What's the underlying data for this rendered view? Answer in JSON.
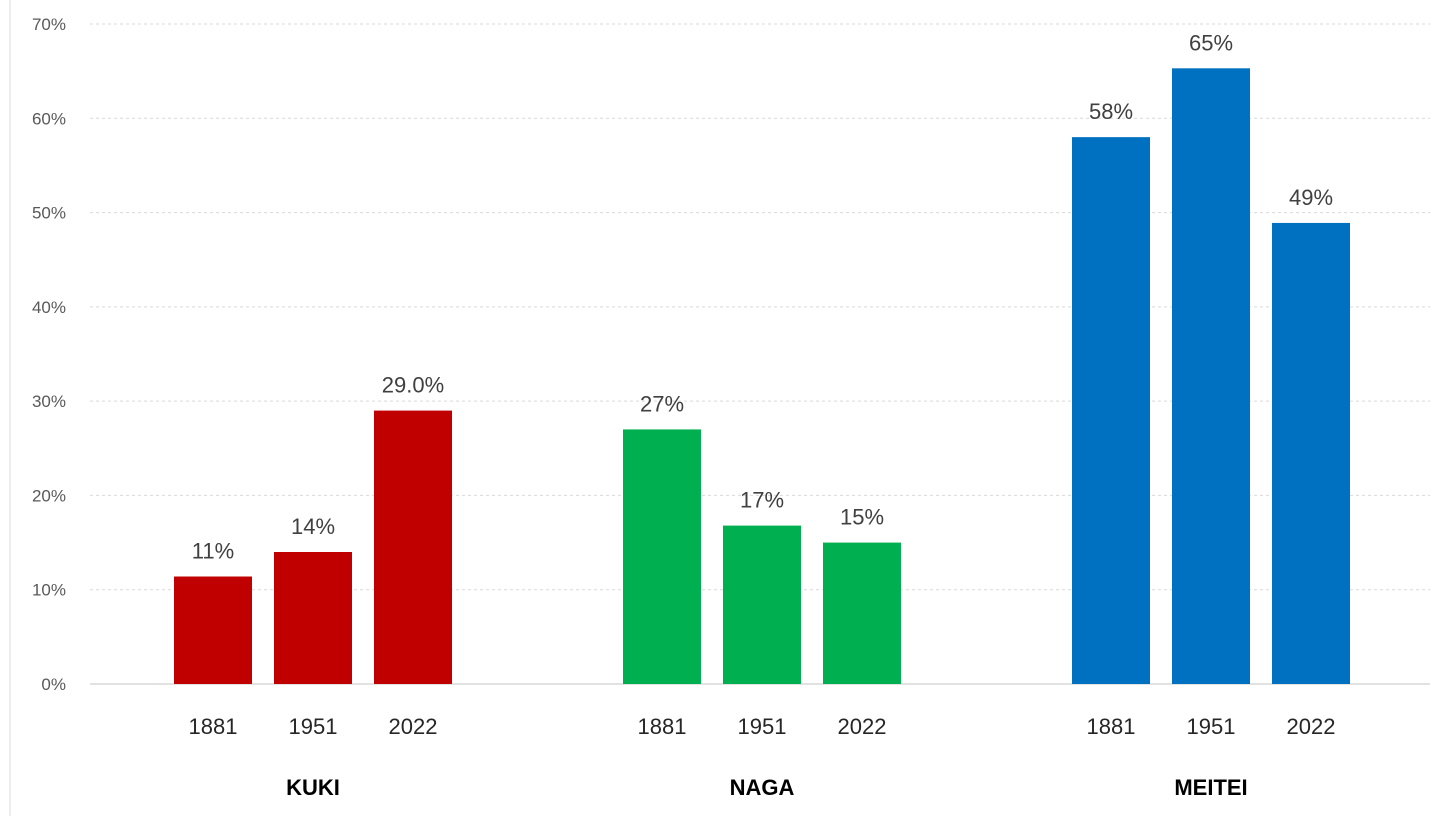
{
  "chart_data": {
    "type": "bar",
    "title": "",
    "xlabel": "",
    "ylabel": "",
    "ylim": [
      0,
      70
    ],
    "y_ticks": [
      "0%",
      "10%",
      "20%",
      "30%",
      "40%",
      "50%",
      "60%",
      "70%"
    ],
    "grid": "horizontal dashed",
    "legend": "none",
    "groups": [
      {
        "name": "KUKI",
        "color": "#c00000",
        "categories": [
          "1881",
          "1951",
          "2022"
        ],
        "values": [
          11.4,
          14.0,
          29.0
        ],
        "labels": [
          "11%",
          "14%",
          "29.0%"
        ]
      },
      {
        "name": "NAGA",
        "color": "#00b050",
        "categories": [
          "1881",
          "1951",
          "2022"
        ],
        "values": [
          27.0,
          16.8,
          15.0
        ],
        "labels": [
          "27%",
          "17%",
          "15%"
        ]
      },
      {
        "name": "MEITEI",
        "color": "#0070c0",
        "categories": [
          "1881",
          "1951",
          "2022"
        ],
        "values": [
          58.0,
          65.3,
          48.9
        ],
        "labels": [
          "58%",
          "65%",
          "49%"
        ]
      }
    ]
  }
}
